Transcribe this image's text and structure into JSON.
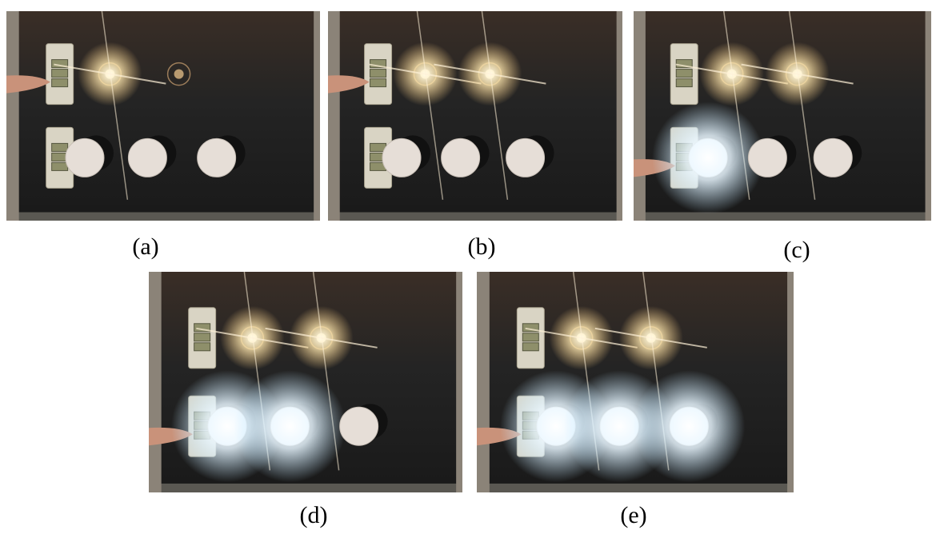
{
  "figure": {
    "top_strip_fragments": [
      "(a) ... ",
      "(b) ... ",
      "(c) ... "
    ],
    "panels": [
      {
        "id": "a",
        "label": "(a)",
        "top_lamps_lit": [
          true,
          false
        ],
        "bottom_lamps_lit": [
          false,
          false,
          false
        ],
        "finger": "top"
      },
      {
        "id": "b",
        "label": "(b)",
        "top_lamps_lit": [
          true,
          true
        ],
        "bottom_lamps_lit": [
          false,
          false,
          false
        ],
        "finger": "top"
      },
      {
        "id": "c",
        "label": "(c)",
        "top_lamps_lit": [
          true,
          true
        ],
        "bottom_lamps_lit": [
          true,
          false,
          false
        ],
        "finger": "bottom"
      },
      {
        "id": "d",
        "label": "(d)",
        "top_lamps_lit": [
          true,
          true
        ],
        "bottom_lamps_lit": [
          true,
          true,
          false
        ],
        "finger": "bottom"
      },
      {
        "id": "e",
        "label": "(e)",
        "top_lamps_lit": [
          true,
          true
        ],
        "bottom_lamps_lit": [
          true,
          true,
          true
        ],
        "finger": "bottom"
      }
    ]
  }
}
